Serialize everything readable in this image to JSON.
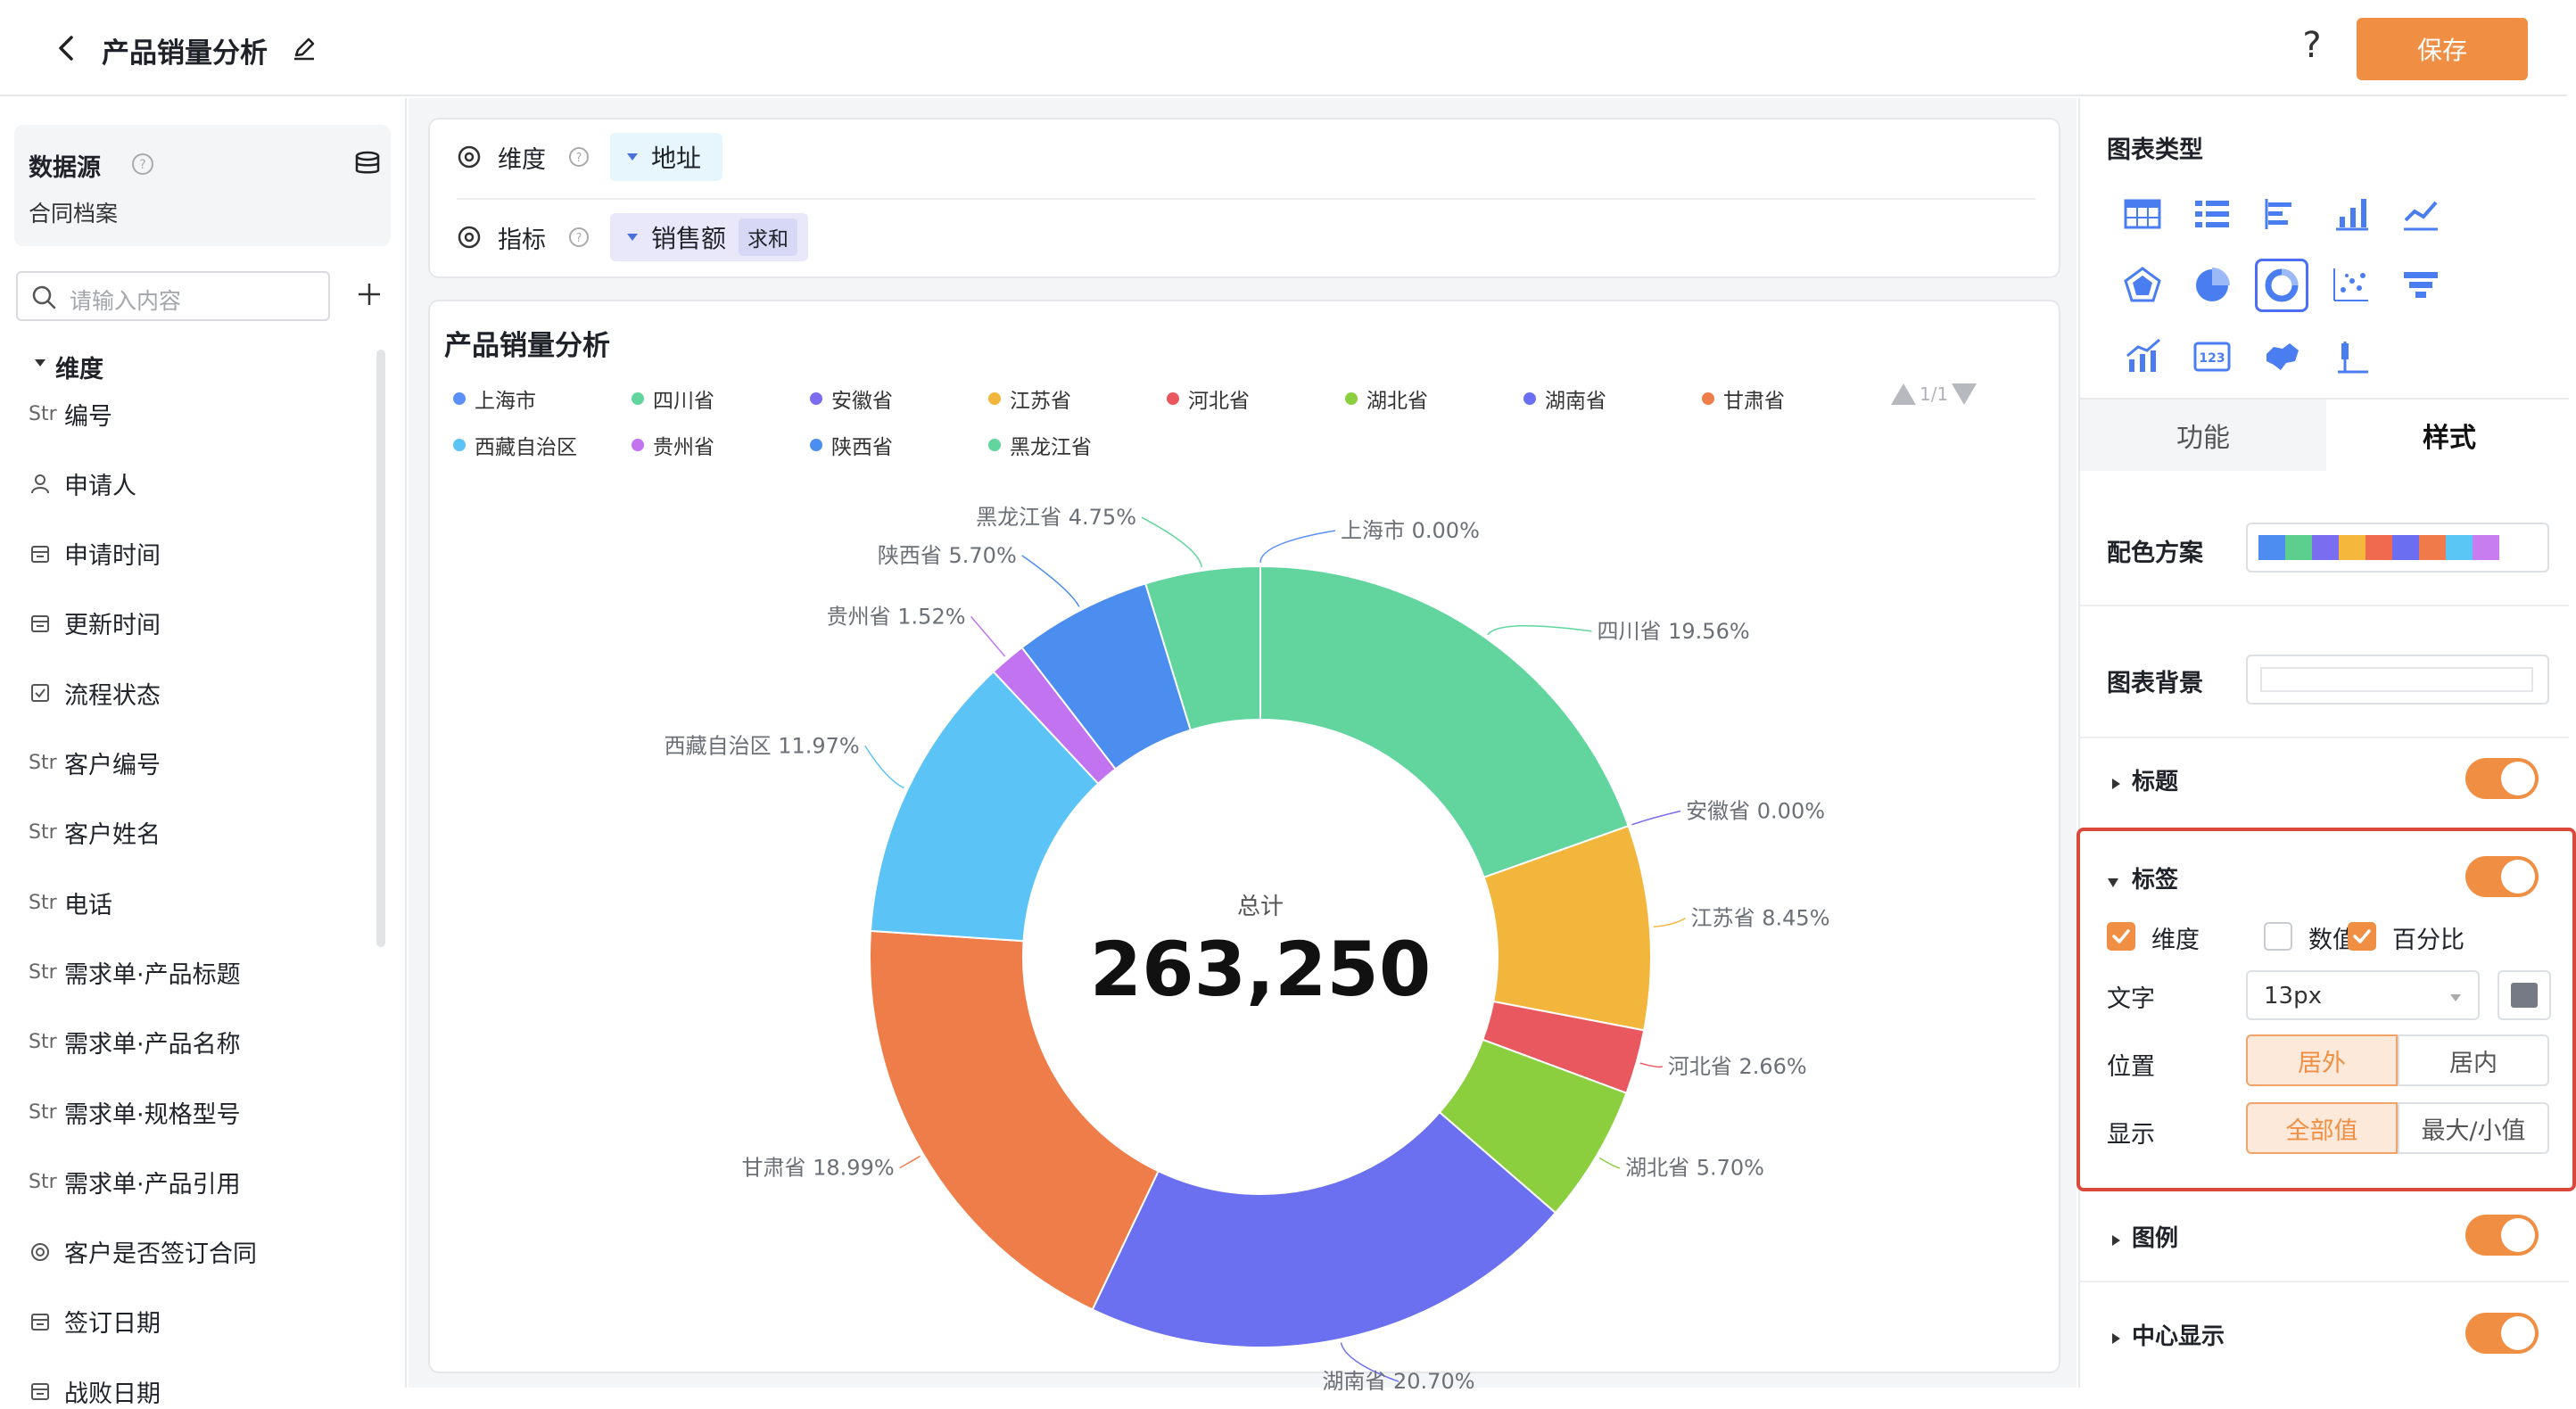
{
  "header": {
    "title": "产品销量分析",
    "help": "?",
    "save_label": "保存"
  },
  "sidebar": {
    "datasource_title": "数据源",
    "datasource_name": "合同档案",
    "search_placeholder": "请输入内容",
    "section_label": "维度",
    "fields": [
      {
        "icon": "Str",
        "label": "编号"
      },
      {
        "icon": "person-icon",
        "label": "申请人"
      },
      {
        "icon": "calendar-icon",
        "label": "申请时间"
      },
      {
        "icon": "calendar-icon",
        "label": "更新时间"
      },
      {
        "icon": "checkbox-icon",
        "label": "流程状态"
      },
      {
        "icon": "Str",
        "label": "客户编号"
      },
      {
        "icon": "Str",
        "label": "客户姓名"
      },
      {
        "icon": "Str",
        "label": "电话"
      },
      {
        "icon": "Str",
        "label": "需求单·产品标题"
      },
      {
        "icon": "Str",
        "label": "需求单·产品名称"
      },
      {
        "icon": "Str",
        "label": "需求单·规格型号"
      },
      {
        "icon": "Str",
        "label": "需求单·产品引用"
      },
      {
        "icon": "radio-icon",
        "label": "客户是否签订合同"
      },
      {
        "icon": "calendar-icon",
        "label": "签订日期"
      },
      {
        "icon": "calendar-icon",
        "label": "战败日期"
      }
    ]
  },
  "config": {
    "dimension_label": "维度",
    "dimension_value": "地址",
    "metric_label": "指标",
    "metric_value": "销售额",
    "metric_agg": "求和"
  },
  "chart": {
    "title": "产品销量分析",
    "pager": "1/1",
    "center_label": "总计",
    "center_value": "263,250"
  },
  "chart_data": {
    "type": "pie",
    "title": "产品销量分析",
    "total": "263,250",
    "categories": [
      "上海市",
      "四川省",
      "安徽省",
      "江苏省",
      "河北省",
      "湖北省",
      "湖南省",
      "甘肃省",
      "西藏自治区",
      "贵州省",
      "陕西省",
      "黑龙江省"
    ],
    "values": [
      0.0,
      19.56,
      0.0,
      8.45,
      2.66,
      5.7,
      20.7,
      18.99,
      11.97,
      1.52,
      5.7,
      4.75
    ],
    "labels": [
      "上海市 0.00%",
      "四川省 19.56%",
      "安徽省 0.00%",
      "江苏省 8.45%",
      "河北省 2.66%",
      "湖北省 5.70%",
      "湖南省 20.70%",
      "甘肃省 18.99%",
      "西藏自治区 11.97%",
      "贵州省 1.52%",
      "陕西省 5.70%",
      "黑龙江省 4.75%"
    ],
    "colors": [
      "#5b8ff9",
      "#62d59f",
      "#7b6cf0",
      "#f2b63d",
      "#e8585e",
      "#8ccf3e",
      "#6b70f0",
      "#ee7d4a",
      "#5bc3f5",
      "#c173f0",
      "#4b8ef0",
      "#62d59f"
    ],
    "legend_position": "top"
  },
  "right": {
    "chart_type_title": "图表类型",
    "tab_function": "功能",
    "tab_style": "样式",
    "palette_label": "配色方案",
    "palette": [
      "#4d8cf0",
      "#5ccf8f",
      "#7a6df0",
      "#f5b83d",
      "#ef6a4e",
      "#6b6ef0",
      "#f07a4a",
      "#5ac6f5",
      "#c77cf0"
    ],
    "background_label": "图表背景",
    "title_label": "标题",
    "label_label": "标签",
    "opt_dimension": "维度",
    "opt_value": "数值",
    "opt_percent": "百分比",
    "text_label": "文字",
    "text_size": "13px",
    "position_label": "位置",
    "pos_outside": "居外",
    "pos_inside": "居内",
    "display_label": "显示",
    "disp_all": "全部值",
    "disp_minmax": "最大/小值",
    "legend_label": "图例",
    "center_label": "中心显示",
    "accent": "#f08f44"
  }
}
